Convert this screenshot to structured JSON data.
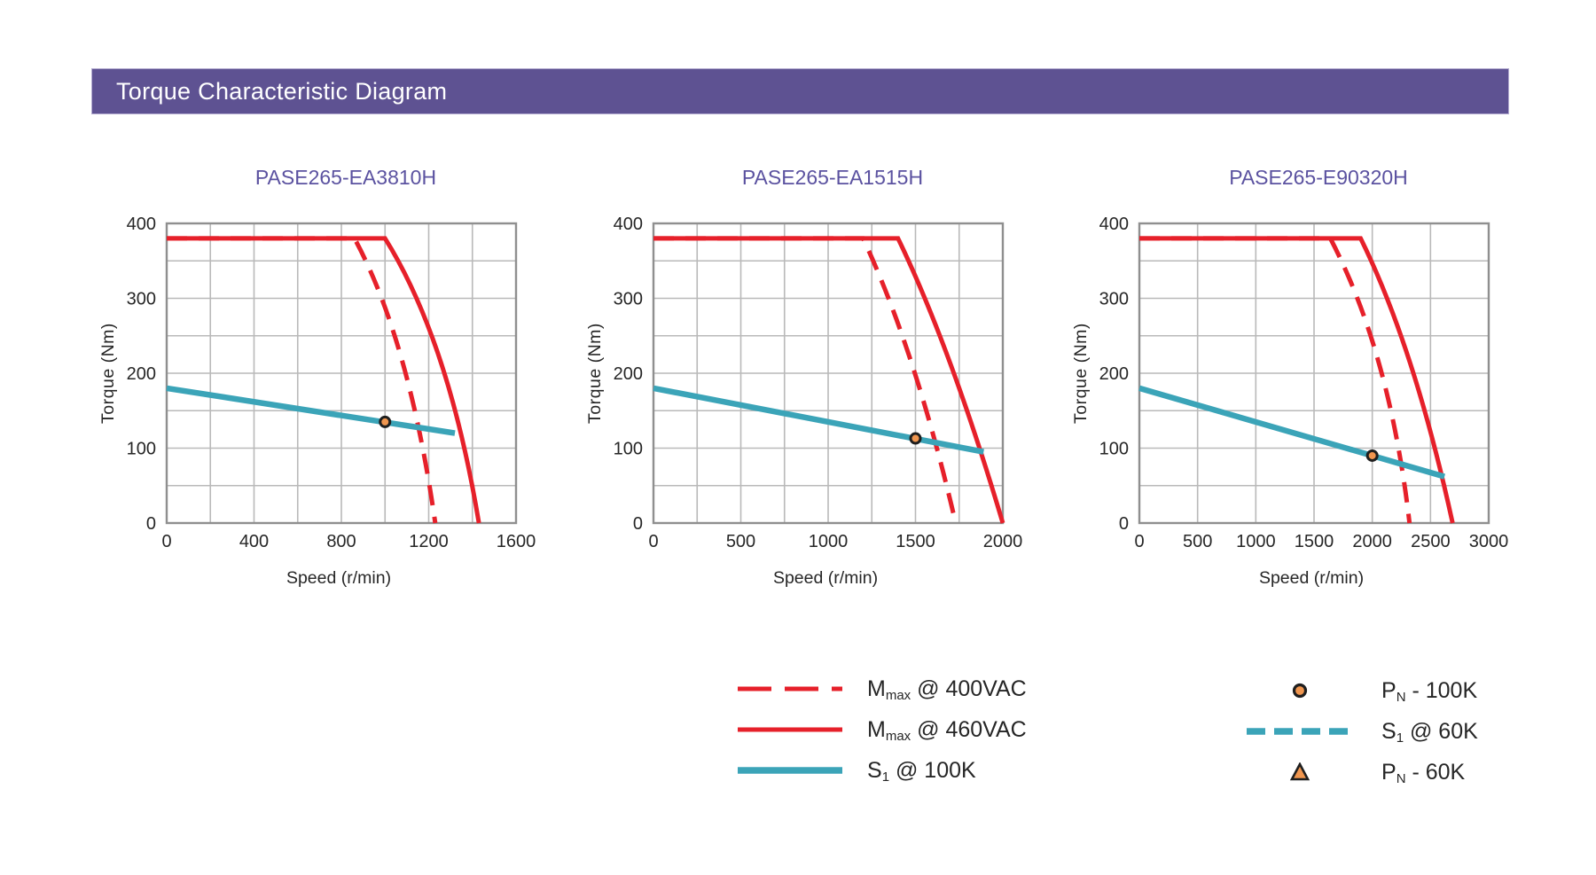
{
  "header": {
    "title": "Torque Characteristic Diagram"
  },
  "colors": {
    "header_bg": "#5e5292",
    "header_text": "#ffffff",
    "chart_title": "#5b52a0",
    "red": "#e6202a",
    "teal": "#3ba4b8",
    "orange": "#f0964f",
    "marker_outline": "#1f1f1f",
    "grid": "#b9b9b9",
    "frame": "#8f8f8f",
    "axis_text": "#262626"
  },
  "chart_data": [
    {
      "type": "line",
      "title": "PASE265-EA3810H",
      "xlabel": "Speed (r/min)",
      "ylabel": "Torque (Nm)",
      "xlim": [
        0,
        1600
      ],
      "ylim": [
        0,
        400
      ],
      "x_ticks": [
        0,
        400,
        800,
        1200,
        1600
      ],
      "y_ticks": [
        0,
        100,
        200,
        300,
        400
      ],
      "x_grid_step": 200,
      "y_grid_step": 50,
      "grid": true,
      "series": [
        {
          "name": "Mmax @ 400VAC",
          "color": "red",
          "dash": true,
          "shape": "knee",
          "flat_level": 380,
          "corner_x": 860,
          "control": [
            1110,
            245
          ],
          "zero_x": 1230
        },
        {
          "name": "Mmax @ 460VAC",
          "color": "red",
          "dash": false,
          "shape": "knee",
          "flat_level": 380,
          "corner_x": 1000,
          "control": [
            1290,
            245
          ],
          "zero_x": 1430
        },
        {
          "name": "S1 @ 100K",
          "color": "teal",
          "dash": false,
          "shape": "straight",
          "start": [
            0,
            180
          ],
          "end": [
            1320,
            120
          ]
        }
      ],
      "marker": {
        "name": "PN - 100K",
        "x": 1000,
        "y": 135
      }
    },
    {
      "type": "line",
      "title": "PASE265-EA1515H",
      "xlabel": "Speed (r/min)",
      "ylabel": "Torque (Nm)",
      "xlim": [
        0,
        2000
      ],
      "ylim": [
        0,
        400
      ],
      "x_ticks": [
        0,
        500,
        1000,
        1500,
        2000
      ],
      "y_ticks": [
        0,
        100,
        200,
        300,
        400
      ],
      "x_grid_step": 250,
      "y_grid_step": 50,
      "grid": true,
      "series": [
        {
          "name": "Mmax @ 400VAC",
          "color": "red",
          "dash": true,
          "shape": "knee",
          "flat_level": 380,
          "corner_x": 1200,
          "control": [
            1500,
            230
          ],
          "zero_x": 1730
        },
        {
          "name": "Mmax @ 460VAC",
          "color": "red",
          "dash": false,
          "shape": "knee",
          "flat_level": 380,
          "corner_x": 1400,
          "control": [
            1700,
            235
          ],
          "zero_x": 2000
        },
        {
          "name": "S1 @ 100K",
          "color": "teal",
          "dash": false,
          "shape": "straight",
          "start": [
            0,
            180
          ],
          "end": [
            1890,
            95
          ]
        }
      ],
      "marker": {
        "name": "PN - 100K",
        "x": 1500,
        "y": 113
      }
    },
    {
      "type": "line",
      "title": "PASE265-E90320H",
      "xlabel": "Speed (r/min)",
      "ylabel": "Torque (Nm)",
      "xlim": [
        0,
        3000
      ],
      "ylim": [
        0,
        400
      ],
      "x_ticks": [
        0,
        500,
        1000,
        1500,
        2000,
        2500,
        3000
      ],
      "y_ticks": [
        0,
        100,
        200,
        300,
        400
      ],
      "x_grid_step": 500,
      "y_grid_step": 50,
      "grid": true,
      "series": [
        {
          "name": "Mmax @ 400VAC",
          "color": "red",
          "dash": true,
          "shape": "knee",
          "flat_level": 380,
          "corner_x": 1640,
          "control": [
            2150,
            228
          ],
          "zero_x": 2320
        },
        {
          "name": "Mmax @ 460VAC",
          "color": "red",
          "dash": false,
          "shape": "knee",
          "flat_level": 380,
          "corner_x": 1900,
          "control": [
            2360,
            235
          ],
          "zero_x": 2690
        },
        {
          "name": "S1 @ 100K",
          "color": "teal",
          "dash": false,
          "shape": "straight",
          "start": [
            0,
            180
          ],
          "end": [
            2620,
            62
          ]
        }
      ],
      "marker": {
        "name": "PN - 100K",
        "x": 2000,
        "y": 90
      }
    }
  ],
  "legend": {
    "left": [
      {
        "swatch": "red-dashed-line",
        "parts": [
          "M",
          "max",
          " @ 400VAC"
        ]
      },
      {
        "swatch": "red-solid-line",
        "parts": [
          "M",
          "max",
          " @ 460VAC"
        ]
      },
      {
        "swatch": "teal-solid-line",
        "parts": [
          "S",
          "1",
          " @ 100K"
        ]
      }
    ],
    "right": [
      {
        "swatch": "orange-circle-marker",
        "parts": [
          "P",
          "N",
          " - 100K"
        ]
      },
      {
        "swatch": "teal-dashed-line",
        "parts": [
          "S",
          "1",
          " @ 60K"
        ]
      },
      {
        "swatch": "orange-triangle-marker",
        "parts": [
          "P",
          "N",
          " - 60K"
        ]
      }
    ]
  }
}
